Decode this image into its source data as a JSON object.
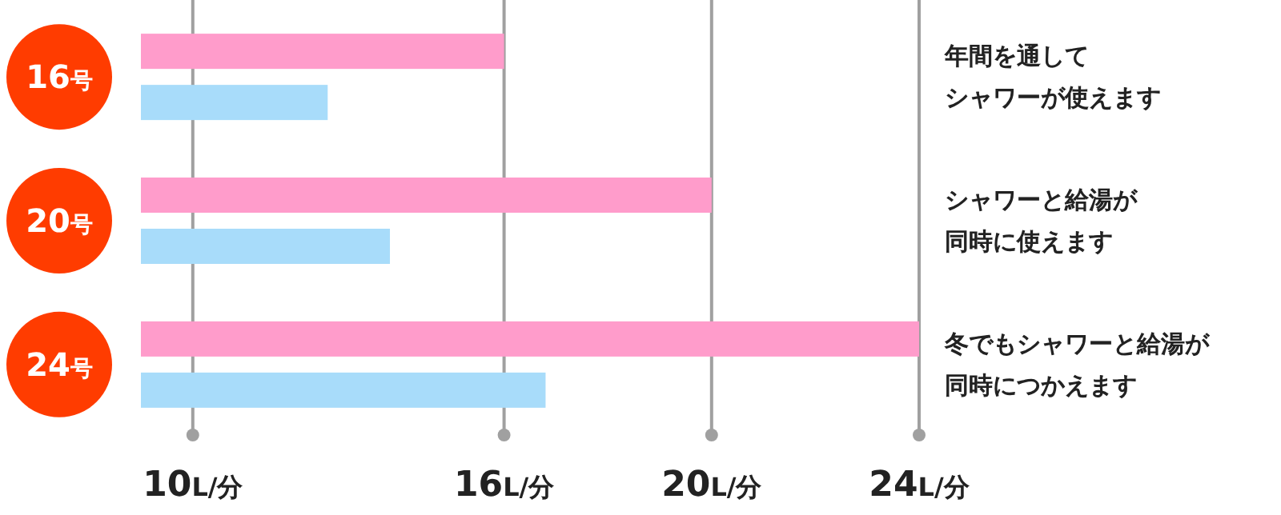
{
  "chart_data": {
    "type": "bar",
    "orientation": "horizontal",
    "categories": [
      "16号",
      "20号",
      "24号"
    ],
    "series": [
      {
        "color": "#ff9ccb",
        "values": [
          16,
          20,
          24
        ]
      },
      {
        "color": "#a8dcfa",
        "values": [
          12.6,
          13.8,
          16.8
        ]
      }
    ],
    "xlim": [
      9,
      24
    ],
    "xticks": [
      {
        "value": 10,
        "label": "10L/分"
      },
      {
        "value": 16,
        "label": "16L/分"
      },
      {
        "value": 20,
        "label": "20L/分"
      },
      {
        "value": 24,
        "label": "24L/分"
      }
    ],
    "grid": "x",
    "annotations": [
      "年間を通して",
      "シャワーが使えます",
      "シャワーと給湯が",
      "同時に使えます",
      "冬でもシャワーと給湯が",
      "同時につかえます"
    ]
  }
}
